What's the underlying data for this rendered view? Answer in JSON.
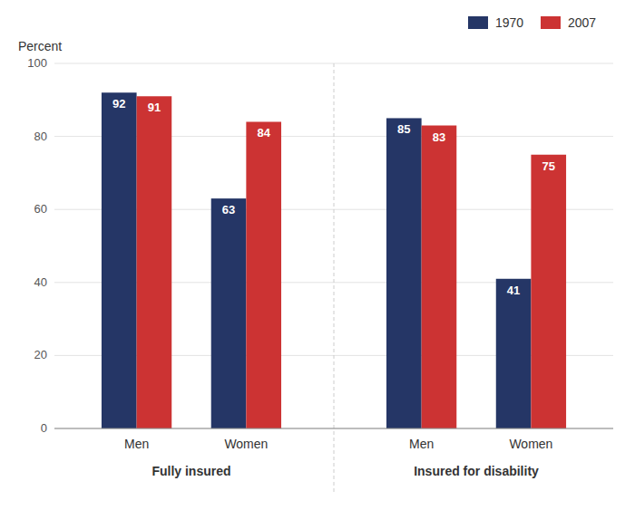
{
  "chart_data": {
    "type": "bar",
    "y_label": "Percent",
    "categories": [
      "Men",
      "Women",
      "Men",
      "Women"
    ],
    "sections": [
      "Fully insured",
      "Fully insured",
      "Insured for disability",
      "Insured for disability"
    ],
    "series": [
      {
        "name": "1970",
        "color": "#253666",
        "values": [
          92,
          63,
          85,
          41
        ]
      },
      {
        "name": "2007",
        "color": "#CC3333",
        "values": [
          91,
          84,
          83,
          75
        ]
      }
    ],
    "ylim": [
      0,
      100
    ],
    "yticks": [
      0,
      20,
      40,
      60,
      80,
      100
    ],
    "grid": true,
    "legend": "upper right",
    "data_labels": true
  }
}
